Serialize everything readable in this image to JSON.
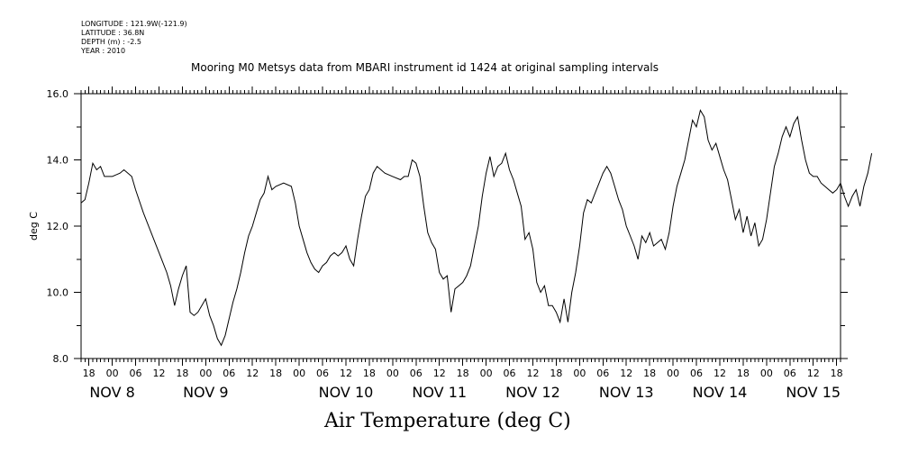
{
  "header": {
    "longitude": "LONGITUDE : 121.9W(-121.9)",
    "latitude": "LATITUDE : 36.8N",
    "depth": "DEPTH (m) : -2.5",
    "year": "YEAR : 2010"
  },
  "chart_data": {
    "type": "line",
    "title": "Mooring M0 Metsys data from MBARI instrument id 1424 at original sampling intervals",
    "main_title": "Air Temperature (deg C)",
    "ylabel": "deg C",
    "xlabel": "",
    "ylim": [
      8.0,
      16.0
    ],
    "xlim": [
      "2010-11-07 16:00",
      "2010-11-15 19:00"
    ],
    "y_ticks": [
      "8.0",
      "10.0",
      "12.0",
      "14.0",
      "16.0"
    ],
    "x_hour_ticks": [
      "18",
      "00",
      "06",
      "12",
      "18",
      "00",
      "06",
      "12",
      "18",
      "00",
      "06",
      "12",
      "18",
      "00",
      "06",
      "12",
      "18",
      "00",
      "06",
      "12",
      "18",
      "00",
      "06",
      "12",
      "18",
      "00",
      "06",
      "12",
      "18",
      "00",
      "06",
      "12",
      "18"
    ],
    "x_day_labels": [
      "NOV  8",
      "NOV  9",
      "NOV 10",
      "NOV 11",
      "NOV 12",
      "NOV 13",
      "NOV 14",
      "NOV 15"
    ],
    "grid": false,
    "series": [
      {
        "points": [
          [
            "2010-11-07 16:00",
            12.7
          ],
          [
            "2010-11-07 17:00",
            12.8
          ],
          [
            "2010-11-07 18:00",
            13.3
          ],
          [
            "2010-11-07 19:00",
            13.9
          ],
          [
            "2010-11-07 20:00",
            13.7
          ],
          [
            "2010-11-07 21:00",
            13.8
          ],
          [
            "2010-11-07 22:00",
            13.5
          ],
          [
            "2010-11-08 00:00",
            13.5
          ],
          [
            "2010-11-08 02:00",
            13.6
          ],
          [
            "2010-11-08 03:00",
            13.7
          ],
          [
            "2010-11-08 05:00",
            13.5
          ],
          [
            "2010-11-08 06:00",
            13.1
          ],
          [
            "2010-11-08 08:00",
            12.4
          ],
          [
            "2010-11-08 10:00",
            11.8
          ],
          [
            "2010-11-08 12:00",
            11.2
          ],
          [
            "2010-11-08 13:00",
            10.9
          ],
          [
            "2010-11-08 14:00",
            10.6
          ],
          [
            "2010-11-08 15:00",
            10.2
          ],
          [
            "2010-11-08 16:00",
            9.6
          ],
          [
            "2010-11-08 17:00",
            10.1
          ],
          [
            "2010-11-08 18:00",
            10.5
          ],
          [
            "2010-11-08 19:00",
            10.8
          ],
          [
            "2010-11-08 20:00",
            9.4
          ],
          [
            "2010-11-08 21:00",
            9.3
          ],
          [
            "2010-11-08 22:00",
            9.4
          ],
          [
            "2010-11-08 23:00",
            9.6
          ],
          [
            "2010-11-09 00:00",
            9.8
          ],
          [
            "2010-11-09 01:00",
            9.3
          ],
          [
            "2010-11-09 02:00",
            9.0
          ],
          [
            "2010-11-09 03:00",
            8.6
          ],
          [
            "2010-11-09 04:00",
            8.4
          ],
          [
            "2010-11-09 05:00",
            8.7
          ],
          [
            "2010-11-09 06:00",
            9.2
          ],
          [
            "2010-11-09 07:00",
            9.7
          ],
          [
            "2010-11-09 08:00",
            10.1
          ],
          [
            "2010-11-09 09:00",
            10.6
          ],
          [
            "2010-11-09 10:00",
            11.2
          ],
          [
            "2010-11-09 11:00",
            11.7
          ],
          [
            "2010-11-09 12:00",
            12.0
          ],
          [
            "2010-11-09 13:00",
            12.4
          ],
          [
            "2010-11-09 14:00",
            12.8
          ],
          [
            "2010-11-09 15:00",
            13.0
          ],
          [
            "2010-11-09 16:00",
            13.5
          ],
          [
            "2010-11-09 17:00",
            13.1
          ],
          [
            "2010-11-09 18:00",
            13.2
          ],
          [
            "2010-11-09 20:00",
            13.3
          ],
          [
            "2010-11-09 22:00",
            13.2
          ],
          [
            "2010-11-09 23:00",
            12.7
          ],
          [
            "2010-11-10 00:00",
            12.0
          ],
          [
            "2010-11-10 01:00",
            11.6
          ],
          [
            "2010-11-10 02:00",
            11.2
          ],
          [
            "2010-11-10 03:00",
            10.9
          ],
          [
            "2010-11-10 04:00",
            10.7
          ],
          [
            "2010-11-10 05:00",
            10.6
          ],
          [
            "2010-11-10 06:00",
            10.8
          ],
          [
            "2010-11-10 07:00",
            10.9
          ],
          [
            "2010-11-10 08:00",
            11.1
          ],
          [
            "2010-11-10 09:00",
            11.2
          ],
          [
            "2010-11-10 10:00",
            11.1
          ],
          [
            "2010-11-10 11:00",
            11.2
          ],
          [
            "2010-11-10 12:00",
            11.4
          ],
          [
            "2010-11-10 13:00",
            11.0
          ],
          [
            "2010-11-10 14:00",
            10.8
          ],
          [
            "2010-11-10 15:00",
            11.6
          ],
          [
            "2010-11-10 16:00",
            12.3
          ],
          [
            "2010-11-10 17:00",
            12.9
          ],
          [
            "2010-11-10 18:00",
            13.1
          ],
          [
            "2010-11-10 19:00",
            13.6
          ],
          [
            "2010-11-10 20:00",
            13.8
          ],
          [
            "2010-11-10 22:00",
            13.6
          ],
          [
            "2010-11-11 00:00",
            13.5
          ],
          [
            "2010-11-11 02:00",
            13.4
          ],
          [
            "2010-11-11 03:00",
            13.5
          ],
          [
            "2010-11-11 04:00",
            13.5
          ],
          [
            "2010-11-11 05:00",
            14.0
          ],
          [
            "2010-11-11 06:00",
            13.9
          ],
          [
            "2010-11-11 07:00",
            13.5
          ],
          [
            "2010-11-11 08:00",
            12.6
          ],
          [
            "2010-11-11 09:00",
            11.8
          ],
          [
            "2010-11-11 10:00",
            11.5
          ],
          [
            "2010-11-11 11:00",
            11.3
          ],
          [
            "2010-11-11 12:00",
            10.6
          ],
          [
            "2010-11-11 13:00",
            10.4
          ],
          [
            "2010-11-11 14:00",
            10.5
          ],
          [
            "2010-11-11 15:00",
            9.4
          ],
          [
            "2010-11-11 16:00",
            10.1
          ],
          [
            "2010-11-11 17:00",
            10.2
          ],
          [
            "2010-11-11 18:00",
            10.3
          ],
          [
            "2010-11-11 19:00",
            10.5
          ],
          [
            "2010-11-11 20:00",
            10.8
          ],
          [
            "2010-11-11 21:00",
            11.4
          ],
          [
            "2010-11-11 22:00",
            12.0
          ],
          [
            "2010-11-11 23:00",
            12.9
          ],
          [
            "2010-11-12 00:00",
            13.6
          ],
          [
            "2010-11-12 01:00",
            14.1
          ],
          [
            "2010-11-12 02:00",
            13.5
          ],
          [
            "2010-11-12 03:00",
            13.8
          ],
          [
            "2010-11-12 04:00",
            13.9
          ],
          [
            "2010-11-12 05:00",
            14.2
          ],
          [
            "2010-11-12 06:00",
            13.7
          ],
          [
            "2010-11-12 07:00",
            13.4
          ],
          [
            "2010-11-12 08:00",
            13.0
          ],
          [
            "2010-11-12 09:00",
            12.6
          ],
          [
            "2010-11-12 10:00",
            11.6
          ],
          [
            "2010-11-12 11:00",
            11.8
          ],
          [
            "2010-11-12 12:00",
            11.3
          ],
          [
            "2010-11-12 13:00",
            10.3
          ],
          [
            "2010-11-12 14:00",
            10.0
          ],
          [
            "2010-11-12 15:00",
            10.2
          ],
          [
            "2010-11-12 16:00",
            9.6
          ],
          [
            "2010-11-12 17:00",
            9.6
          ],
          [
            "2010-11-12 18:00",
            9.4
          ],
          [
            "2010-11-12 19:00",
            9.1
          ],
          [
            "2010-11-12 20:00",
            9.8
          ],
          [
            "2010-11-12 21:00",
            9.1
          ],
          [
            "2010-11-12 22:00",
            10.0
          ],
          [
            "2010-11-12 23:00",
            10.6
          ],
          [
            "2010-11-13 00:00",
            11.4
          ],
          [
            "2010-11-13 01:00",
            12.4
          ],
          [
            "2010-11-13 02:00",
            12.8
          ],
          [
            "2010-11-13 03:00",
            12.7
          ],
          [
            "2010-11-13 04:00",
            13.0
          ],
          [
            "2010-11-13 05:00",
            13.3
          ],
          [
            "2010-11-13 06:00",
            13.6
          ],
          [
            "2010-11-13 07:00",
            13.8
          ],
          [
            "2010-11-13 08:00",
            13.6
          ],
          [
            "2010-11-13 09:00",
            13.2
          ],
          [
            "2010-11-13 10:00",
            12.8
          ],
          [
            "2010-11-13 11:00",
            12.5
          ],
          [
            "2010-11-13 12:00",
            12.0
          ],
          [
            "2010-11-13 13:00",
            11.7
          ],
          [
            "2010-11-13 14:00",
            11.4
          ],
          [
            "2010-11-13 15:00",
            11.0
          ],
          [
            "2010-11-13 16:00",
            11.7
          ],
          [
            "2010-11-13 17:00",
            11.5
          ],
          [
            "2010-11-13 18:00",
            11.8
          ],
          [
            "2010-11-13 19:00",
            11.4
          ],
          [
            "2010-11-13 20:00",
            11.5
          ],
          [
            "2010-11-13 21:00",
            11.6
          ],
          [
            "2010-11-13 22:00",
            11.3
          ],
          [
            "2010-11-13 23:00",
            11.8
          ],
          [
            "2010-11-14 00:00",
            12.6
          ],
          [
            "2010-11-14 01:00",
            13.2
          ],
          [
            "2010-11-14 02:00",
            13.6
          ],
          [
            "2010-11-14 03:00",
            14.0
          ],
          [
            "2010-11-14 04:00",
            14.6
          ],
          [
            "2010-11-14 05:00",
            15.2
          ],
          [
            "2010-11-14 06:00",
            15.0
          ],
          [
            "2010-11-14 07:00",
            15.5
          ],
          [
            "2010-11-14 08:00",
            15.3
          ],
          [
            "2010-11-14 09:00",
            14.6
          ],
          [
            "2010-11-14 10:00",
            14.3
          ],
          [
            "2010-11-14 11:00",
            14.5
          ],
          [
            "2010-11-14 12:00",
            14.1
          ],
          [
            "2010-11-14 13:00",
            13.7
          ],
          [
            "2010-11-14 14:00",
            13.4
          ],
          [
            "2010-11-14 15:00",
            12.8
          ],
          [
            "2010-11-14 16:00",
            12.2
          ],
          [
            "2010-11-14 17:00",
            12.5
          ],
          [
            "2010-11-14 18:00",
            11.8
          ],
          [
            "2010-11-14 19:00",
            12.3
          ],
          [
            "2010-11-14 20:00",
            11.7
          ],
          [
            "2010-11-14 21:00",
            12.1
          ],
          [
            "2010-11-14 22:00",
            11.4
          ],
          [
            "2010-11-14 23:00",
            11.6
          ],
          [
            "2010-11-15 00:00",
            12.2
          ],
          [
            "2010-11-15 01:00",
            13.0
          ],
          [
            "2010-11-15 02:00",
            13.8
          ],
          [
            "2010-11-15 03:00",
            14.2
          ],
          [
            "2010-11-15 04:00",
            14.7
          ],
          [
            "2010-11-15 05:00",
            15.0
          ],
          [
            "2010-11-15 06:00",
            14.7
          ],
          [
            "2010-11-15 07:00",
            15.1
          ],
          [
            "2010-11-15 08:00",
            15.3
          ],
          [
            "2010-11-15 09:00",
            14.6
          ],
          [
            "2010-11-15 10:00",
            14.0
          ],
          [
            "2010-11-15 11:00",
            13.6
          ],
          [
            "2010-11-15 12:00",
            13.5
          ],
          [
            "2010-11-15 13:00",
            13.5
          ],
          [
            "2010-11-15 14:00",
            13.3
          ],
          [
            "2010-11-15 15:00",
            13.2
          ],
          [
            "2010-11-15 16:00",
            13.1
          ],
          [
            "2010-11-15 17:00",
            13.0
          ],
          [
            "2010-11-15 18:00",
            13.1
          ],
          [
            "2010-11-15 19:00",
            13.3
          ],
          [
            "2010-11-15 20:00",
            12.9
          ],
          [
            "2010-11-15 21:00",
            12.6
          ],
          [
            "2010-11-15 22:00",
            12.9
          ],
          [
            "2010-11-15 23:00",
            13.1
          ],
          [
            "2010-11-16 00:00",
            12.6
          ],
          [
            "2010-11-16 01:00",
            13.2
          ],
          [
            "2010-11-16 02:00",
            13.6
          ],
          [
            "2010-11-16 03:00",
            14.2
          ]
        ]
      }
    ]
  }
}
